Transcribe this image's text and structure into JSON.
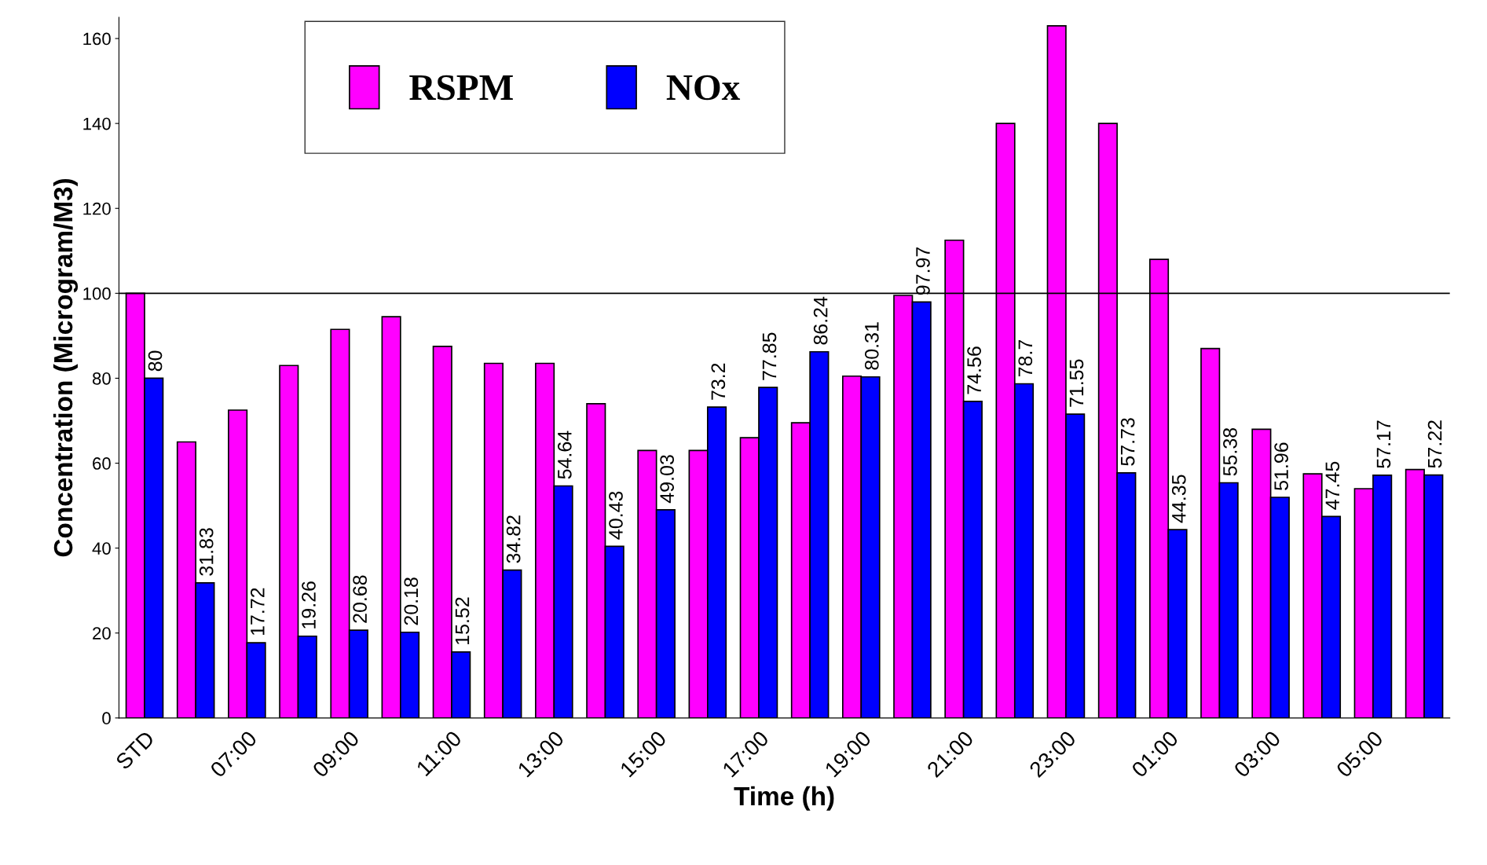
{
  "chart_data": {
    "type": "bar",
    "xlabel": "Time (h)",
    "ylabel": "Concentration (Microgram/M3)",
    "categories": [
      "STD",
      null,
      "07:00",
      null,
      "09:00",
      null,
      "11:00",
      null,
      "13:00",
      null,
      "15:00",
      null,
      "17:00",
      null,
      "19:00",
      null,
      "21:00",
      null,
      "23:00",
      null,
      "01:00",
      null,
      "03:00",
      null,
      "05:00",
      null
    ],
    "series": [
      {
        "name": "RSPM",
        "color": "#ff00ff",
        "values": [
          100,
          65,
          72.5,
          83,
          91.5,
          94.5,
          87.5,
          83.5,
          83.5,
          74,
          63,
          63,
          66,
          69.5,
          80.5,
          99.5,
          112.5,
          140,
          163,
          140,
          108,
          87,
          68,
          57.5,
          54,
          58.5
        ]
      },
      {
        "name": "NOx",
        "color": "#0000ff",
        "values": [
          80,
          31.83,
          17.72,
          19.26,
          20.68,
          20.18,
          15.52,
          34.82,
          54.64,
          40.43,
          49.03,
          73.2,
          77.85,
          86.24,
          80.31,
          97.97,
          74.56,
          78.7,
          71.55,
          57.73,
          44.35,
          55.38,
          51.96,
          47.45,
          57.17,
          57.22
        ],
        "value_labels": [
          "80",
          "31.83",
          "17.72",
          "19.26",
          "20.68",
          "20.18",
          "15.52",
          "34.82",
          "54.64",
          "40.43",
          "49.03",
          "73.2",
          "77.85",
          "86.24",
          "80.31",
          "97.97",
          "74.56",
          "78.7",
          "71.55",
          "57.73",
          "44.35",
          "55.38",
          "51.96",
          "47.45",
          "57.17",
          "57.22"
        ]
      }
    ],
    "ylim": [
      0,
      165
    ],
    "yticks": [
      0,
      20,
      40,
      60,
      80,
      100,
      120,
      140,
      160
    ],
    "ref_lines": [
      {
        "axis": "y",
        "value": 100,
        "color": "#000000"
      }
    ],
    "grid": false,
    "legend": "top"
  }
}
